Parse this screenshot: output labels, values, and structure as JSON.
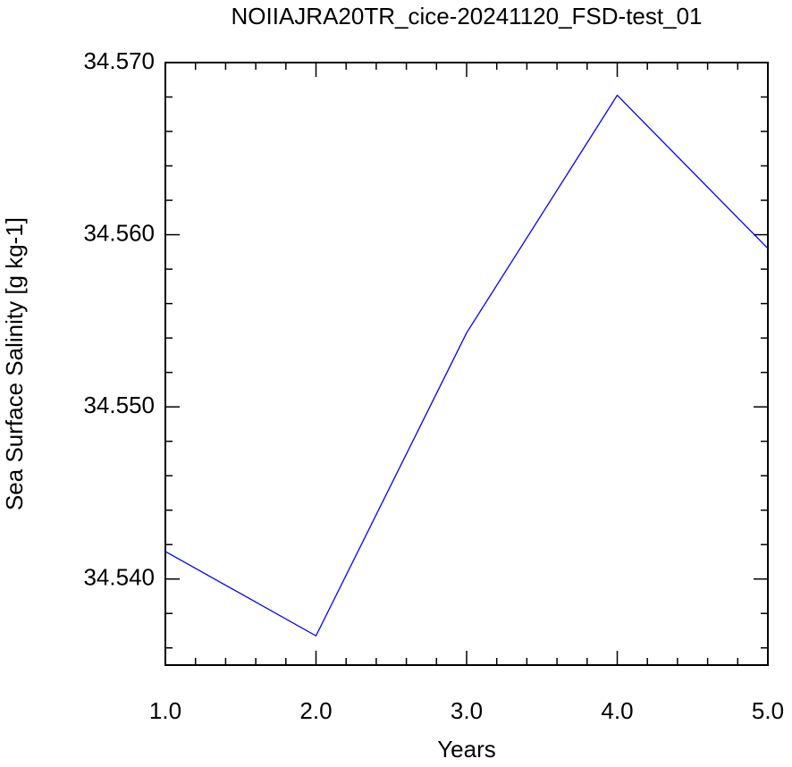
{
  "chart_data": {
    "type": "line",
    "title": "NOIIAJRA20TR_cice-20241120_FSD-test_01",
    "x_label": "Years",
    "y_label": "Sea Surface Salinity [g kg-1]",
    "x": [
      1,
      2,
      3,
      4,
      5
    ],
    "series": [
      {
        "color": "#0000ff",
        "values": [
          34.5416,
          34.5367,
          34.5543,
          34.5681,
          34.5592
        ]
      }
    ],
    "xlim": [
      1,
      5
    ],
    "ylim": [
      34.535,
      34.57
    ],
    "xticks": [
      {
        "value": 1,
        "label": "1.0"
      },
      {
        "value": 2,
        "label": "2.0"
      },
      {
        "value": 3,
        "label": "3.0"
      },
      {
        "value": 4,
        "label": "4.0"
      },
      {
        "value": 5,
        "label": "5.0"
      }
    ],
    "yticks": [
      {
        "value": 34.54,
        "label": "34.540"
      },
      {
        "value": 34.55,
        "label": "34.550"
      },
      {
        "value": 34.56,
        "label": "34.560"
      },
      {
        "value": 34.57,
        "label": "34.570"
      }
    ],
    "xminorticks": [
      1.2,
      1.4,
      1.6,
      1.8,
      2.2,
      2.4,
      2.6,
      2.8,
      3.2,
      3.4,
      3.6,
      3.8,
      4.2,
      4.4,
      4.6,
      4.8
    ],
    "yminorticks": [
      34.536,
      34.538,
      34.542,
      34.544,
      34.546,
      34.548,
      34.552,
      34.554,
      34.556,
      34.558,
      34.562,
      34.564,
      34.566,
      34.568
    ]
  }
}
